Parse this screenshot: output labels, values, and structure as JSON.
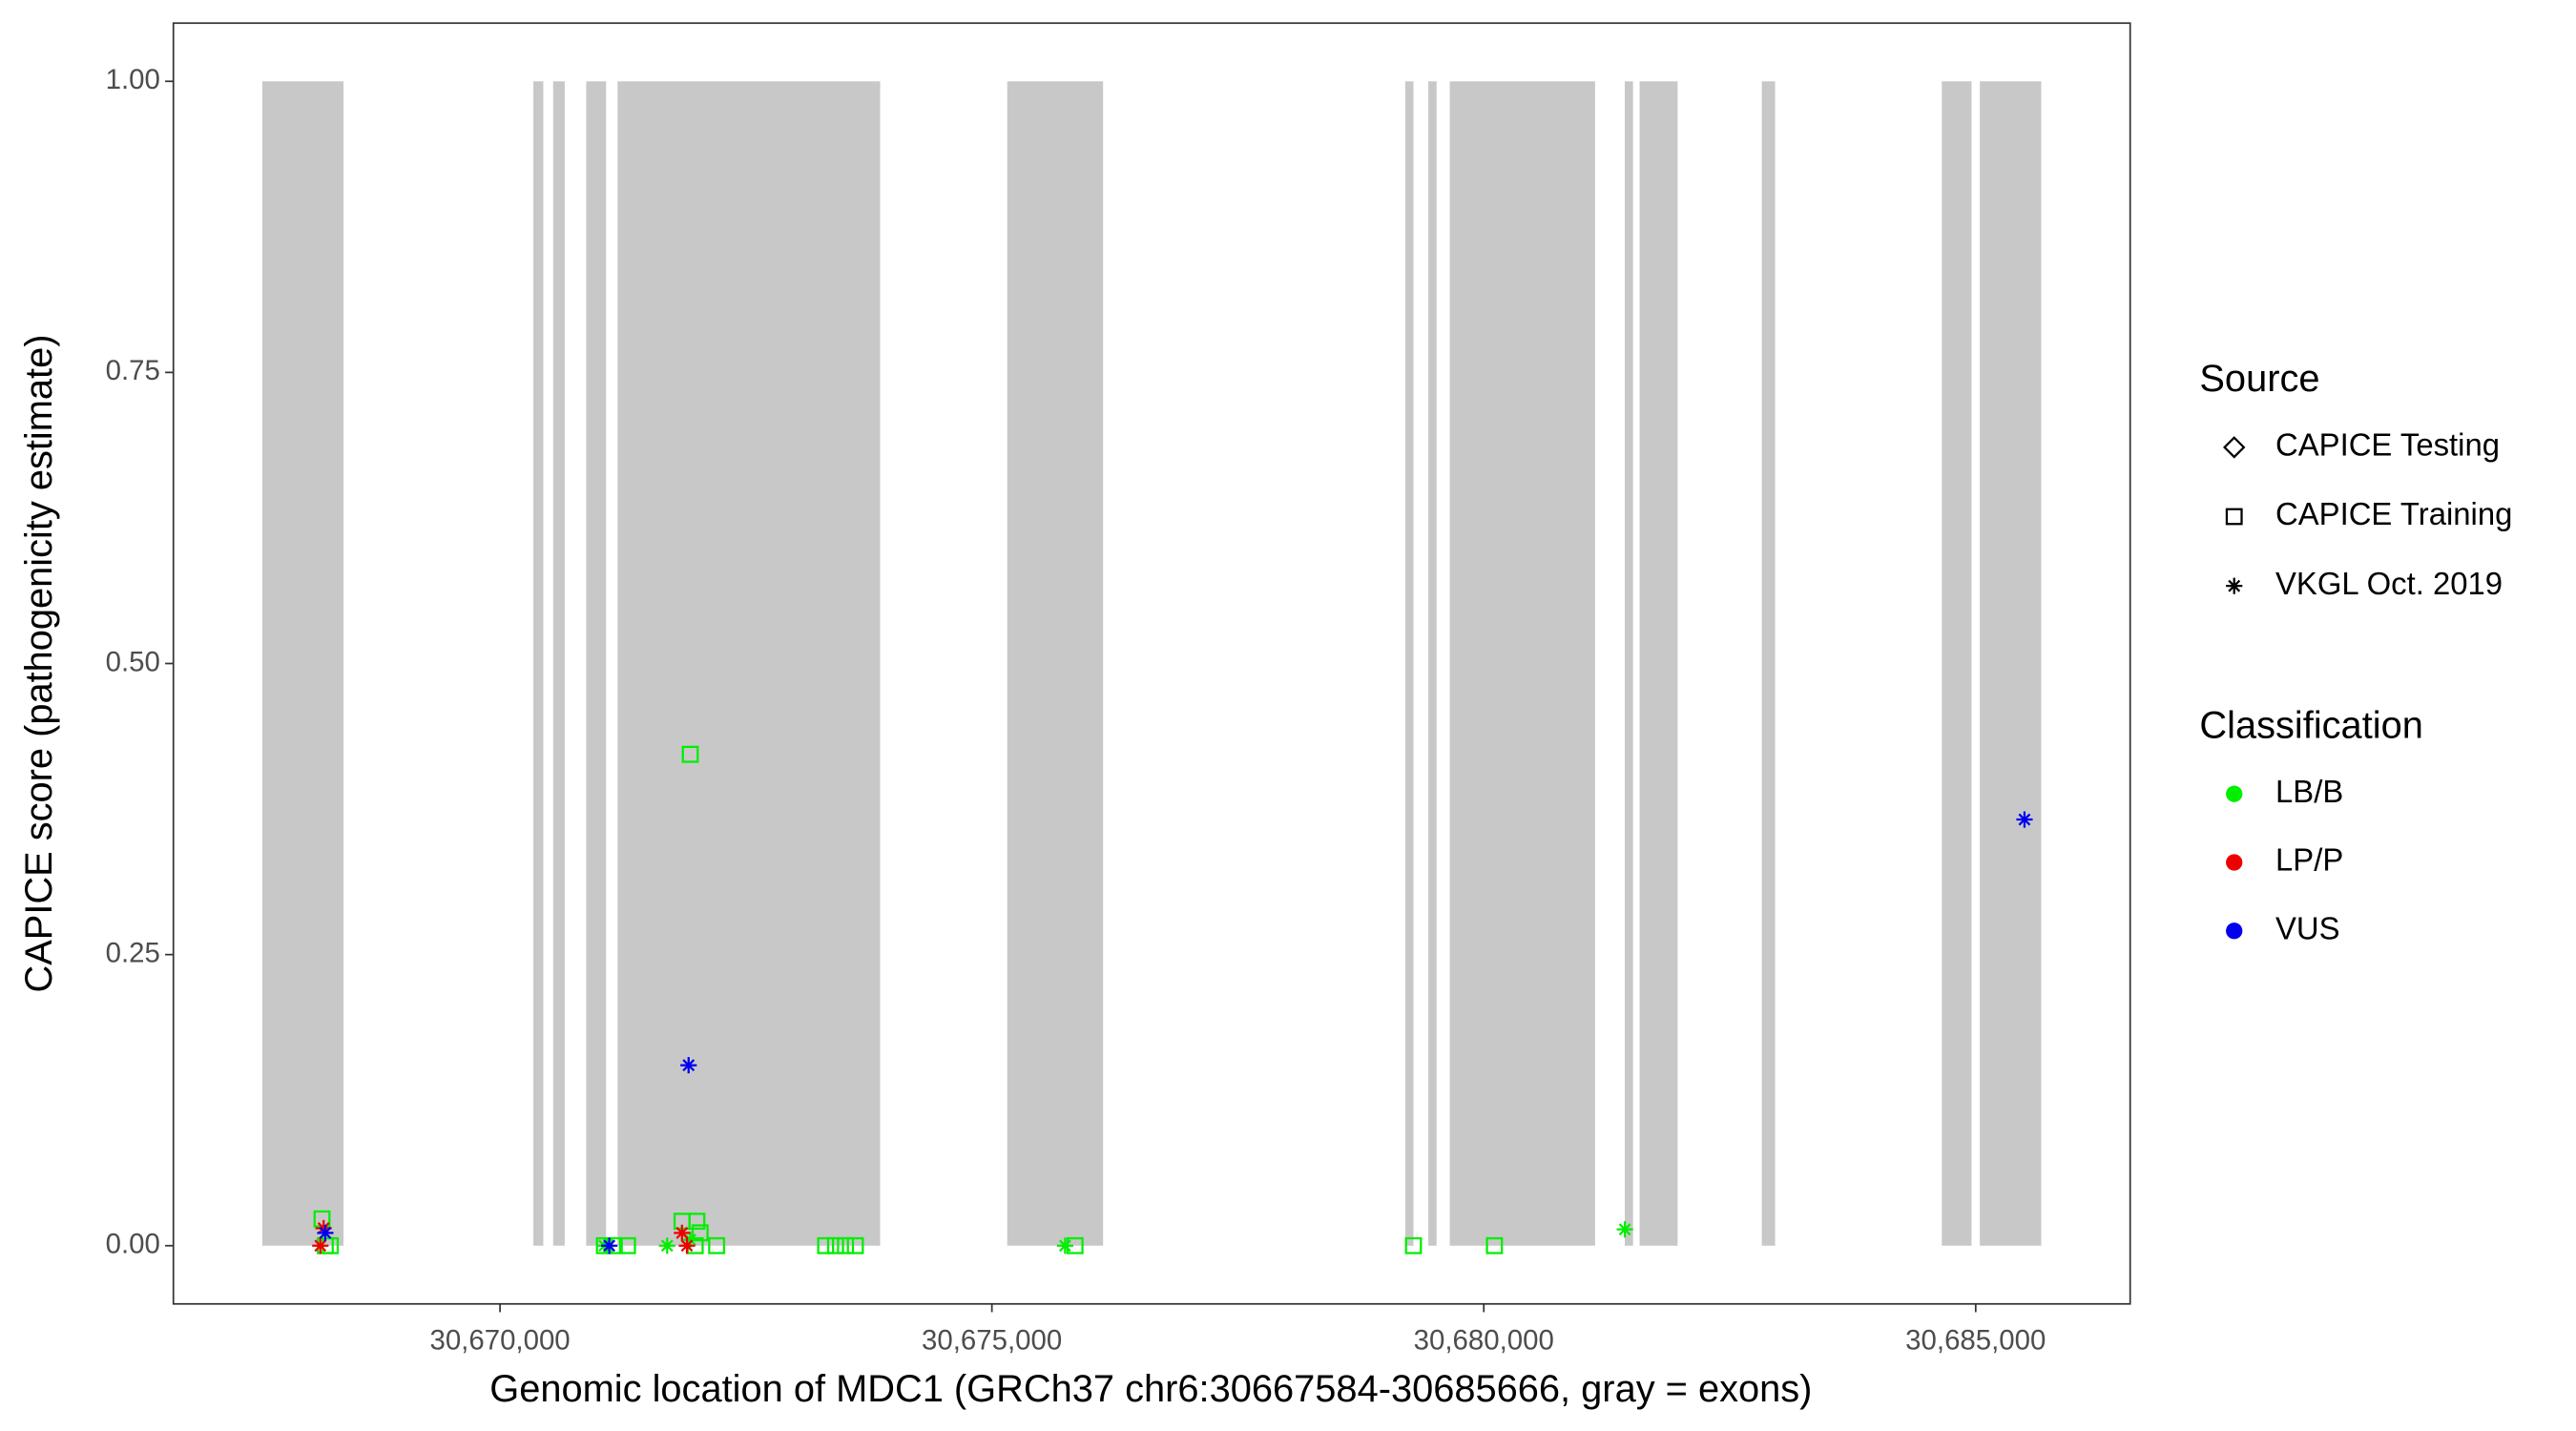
{
  "chart_data": {
    "type": "scatter",
    "x_label": "Genomic location of MDC1 (GRCh37 chr6:30667584-30685666, gray = exons)",
    "y_label": "CAPICE score (pathogenicity estimate)",
    "xlim": [
      30666680,
      30686570
    ],
    "ylim": [
      -0.05,
      1.05
    ],
    "xticks": [
      {
        "value": 30670000,
        "label": "30,670,000"
      },
      {
        "value": 30675000,
        "label": "30,675,000"
      },
      {
        "value": 30680000,
        "label": "30,680,000"
      },
      {
        "value": 30685000,
        "label": "30,685,000"
      }
    ],
    "yticks": [
      {
        "value": 0,
        "label": "0.00"
      },
      {
        "value": 0.25,
        "label": "0.25"
      },
      {
        "value": 0.5,
        "label": "0.50"
      },
      {
        "value": 0.75,
        "label": "0.75"
      },
      {
        "value": 1,
        "label": "1.00"
      }
    ],
    "grid": false,
    "exon_color": "#c8c8c8",
    "exon_range": [
      0,
      1
    ],
    "exons": [
      [
        30667584,
        30668409
      ],
      [
        30670339,
        30670440
      ],
      [
        30670540,
        30670658
      ],
      [
        30670876,
        30671078
      ],
      [
        30671195,
        30673864
      ],
      [
        30675156,
        30676130
      ],
      [
        30679201,
        30679285
      ],
      [
        30679436,
        30679520
      ],
      [
        30679654,
        30681131
      ],
      [
        30681433,
        30681517
      ],
      [
        30681584,
        30681970
      ],
      [
        30682826,
        30682961
      ],
      [
        30684656,
        30684958
      ],
      [
        30685042,
        30685666
      ]
    ],
    "source_legend": {
      "title": "Source",
      "items": [
        {
          "name": "CAPICE Testing",
          "shape": "diamond"
        },
        {
          "name": "CAPICE Training",
          "shape": "square"
        },
        {
          "name": "VKGL Oct. 2019",
          "shape": "asterisk"
        }
      ]
    },
    "classification_legend": {
      "title": "Classification",
      "items": [
        {
          "name": "LB/B",
          "color": "#00ee00"
        },
        {
          "name": "LP/P",
          "color": "#ee0000"
        },
        {
          "name": "VUS",
          "color": "#0000ee"
        }
      ]
    },
    "series": [
      {
        "source": "CAPICE Training",
        "classification": "LB/B",
        "x": [
          30668191,
          30668224,
          30668275,
          30671061,
          30671162,
          30671296,
          30671850,
          30671934,
          30672001,
          30672034,
          30671984,
          30672202,
          30673310,
          30673411,
          30673512,
          30673612,
          30675845,
          30679285,
          30680108
        ],
        "y": [
          0.023,
          0,
          0,
          0,
          0,
          0,
          0.021,
          0.422,
          0.021,
          0.011,
          0,
          0,
          0,
          0,
          0,
          0,
          0,
          0,
          0
        ]
      },
      {
        "source": "VKGL Oct. 2019",
        "classification": "LB/B",
        "x": [
          30671061,
          30671699,
          30671934,
          30675744,
          30681434
        ],
        "y": [
          0,
          0,
          0.005,
          0,
          0.014
        ]
      },
      {
        "source": "VKGL Oct. 2019",
        "classification": "LP/P",
        "x": [
          30668174,
          30668207,
          30671850,
          30671900
        ],
        "y": [
          0,
          0.015,
          0.011,
          0
        ]
      },
      {
        "source": "VKGL Oct. 2019",
        "classification": "VUS",
        "x": [
          30668224,
          30671111,
          30671917,
          30685496
        ],
        "y": [
          0.011,
          0,
          0.155,
          0.366
        ]
      }
    ]
  }
}
